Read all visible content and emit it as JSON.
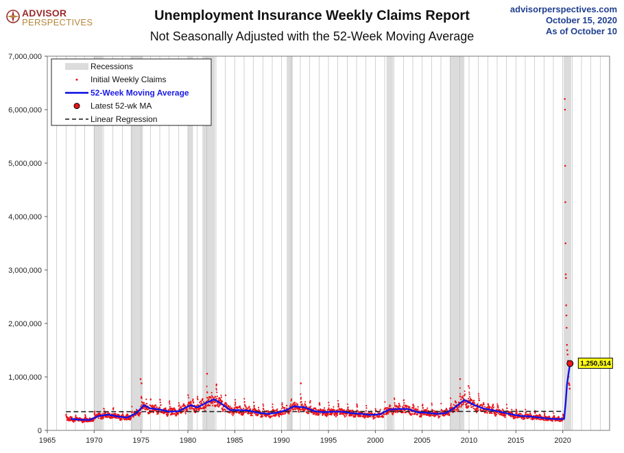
{
  "header": {
    "logo_line1": "ADVISOR",
    "logo_line2": "PERSPECTIVES",
    "title": "Unemployment Insurance Weekly Claims Report",
    "subtitle": "Not Seasonally Adjusted with the 52-Week Moving Average",
    "source_site": "advisorperspectives.com",
    "source_date": "October 15, 2020",
    "source_asof": "As  of October 10"
  },
  "colors": {
    "claims": "#e8141b",
    "ma": "#1212e6",
    "recession": "#dcdcdc",
    "regression": "#222222",
    "callout_bg": "#ffff1a",
    "grid": "#bdbdbd",
    "logo_red": "#9b2a2a",
    "logo_gold": "#b5853a",
    "source_blue": "#1f3f8f"
  },
  "chart_data": {
    "type": "scatter",
    "x_axis": {
      "min": 1965,
      "max": 2025,
      "ticks": [
        1965,
        1970,
        1975,
        1980,
        1985,
        1990,
        1995,
        2000,
        2005,
        2010,
        2015,
        2020
      ]
    },
    "y_axis": {
      "min": 0,
      "max": 7000000,
      "ticks": [
        0,
        1000000,
        2000000,
        3000000,
        4000000,
        5000000,
        6000000,
        7000000
      ],
      "tick_labels": [
        "0",
        "1,000,000",
        "2,000,000",
        "3,000,000",
        "4,000,000",
        "5,000,000",
        "6,000,000",
        "7,000,000"
      ]
    },
    "grid": "vertical-yearly",
    "legend_position": "top-left",
    "legend": [
      {
        "label": "Recessions",
        "marker": "band"
      },
      {
        "label": "Initial Weekly Claims",
        "marker": "dot"
      },
      {
        "label": "52-Week Moving Average",
        "marker": "line"
      },
      {
        "label": "Latest 52-wk MA",
        "marker": "big-dot"
      },
      {
        "label": "Linear Regression",
        "marker": "dash"
      }
    ],
    "recessions": [
      [
        1969.95,
        1970.9
      ],
      [
        1973.9,
        1975.2
      ],
      [
        1980.0,
        1980.55
      ],
      [
        1981.55,
        1982.9
      ],
      [
        1990.55,
        1991.2
      ],
      [
        2001.2,
        2001.9
      ],
      [
        2007.95,
        2009.5
      ],
      [
        2020.1,
        2020.9
      ]
    ],
    "moving_average": [
      [
        1967.5,
        215000
      ],
      [
        1968.5,
        200000
      ],
      [
        1969.5,
        195000
      ],
      [
        1970.5,
        270000
      ],
      [
        1971.5,
        295000
      ],
      [
        1972.5,
        260000
      ],
      [
        1973.5,
        240000
      ],
      [
        1974.5,
        320000
      ],
      [
        1975.3,
        470000
      ],
      [
        1976.0,
        410000
      ],
      [
        1977.0,
        390000
      ],
      [
        1978.0,
        350000
      ],
      [
        1979.0,
        360000
      ],
      [
        1980.3,
        470000
      ],
      [
        1981.0,
        430000
      ],
      [
        1982.0,
        520000
      ],
      [
        1982.8,
        580000
      ],
      [
        1983.5,
        510000
      ],
      [
        1984.5,
        380000
      ],
      [
        1985.5,
        380000
      ],
      [
        1986.5,
        370000
      ],
      [
        1987.5,
        330000
      ],
      [
        1988.5,
        310000
      ],
      [
        1989.5,
        330000
      ],
      [
        1990.5,
        380000
      ],
      [
        1991.3,
        450000
      ],
      [
        1992.5,
        430000
      ],
      [
        1993.5,
        360000
      ],
      [
        1994.5,
        340000
      ],
      [
        1995.5,
        350000
      ],
      [
        1996.5,
        350000
      ],
      [
        1997.5,
        320000
      ],
      [
        1998.5,
        310000
      ],
      [
        1999.5,
        290000
      ],
      [
        2000.5,
        300000
      ],
      [
        2001.5,
        390000
      ],
      [
        2002.5,
        400000
      ],
      [
        2003.5,
        400000
      ],
      [
        2004.5,
        340000
      ],
      [
        2005.5,
        330000
      ],
      [
        2006.5,
        310000
      ],
      [
        2007.5,
        320000
      ],
      [
        2008.5,
        430000
      ],
      [
        2009.5,
        570000
      ],
      [
        2010.5,
        480000
      ],
      [
        2011.5,
        410000
      ],
      [
        2012.5,
        380000
      ],
      [
        2013.5,
        340000
      ],
      [
        2014.5,
        300000
      ],
      [
        2015.5,
        270000
      ],
      [
        2016.5,
        260000
      ],
      [
        2017.5,
        240000
      ],
      [
        2018.5,
        220000
      ],
      [
        2019.5,
        210000
      ],
      [
        2020.15,
        215000
      ],
      [
        2020.3,
        500000
      ],
      [
        2020.45,
        850000
      ],
      [
        2020.6,
        1050000
      ],
      [
        2020.78,
        1250514
      ]
    ],
    "claims_notable": [
      [
        2020.22,
        6200000
      ],
      [
        2020.24,
        6000000
      ],
      [
        2020.26,
        4950000
      ],
      [
        2020.28,
        4270000
      ],
      [
        2020.3,
        3500000
      ],
      [
        2020.32,
        2920000
      ],
      [
        2020.34,
        2850000
      ],
      [
        2020.37,
        2340000
      ],
      [
        2020.39,
        2150000
      ],
      [
        2020.41,
        1920000
      ],
      [
        2020.45,
        1600000
      ],
      [
        2020.48,
        1500000
      ],
      [
        2020.52,
        1420000
      ],
      [
        2020.56,
        1300000
      ],
      [
        2020.6,
        1000000
      ],
      [
        2020.66,
        880000
      ],
      [
        2020.7,
        850000
      ],
      [
        2020.74,
        780000
      ],
      [
        1982.05,
        1060000
      ],
      [
        1974.95,
        960000
      ],
      [
        2009.05,
        960000
      ],
      [
        1975.05,
        880000
      ],
      [
        1992.05,
        880000
      ],
      [
        2009.95,
        830000
      ],
      [
        1983.05,
        860000
      ]
    ],
    "claims_baseline_mean": 350000,
    "claims_spread": 0.35,
    "regression": {
      "start": [
        1967.0,
        350000
      ],
      "end": [
        2020.2,
        355000
      ]
    },
    "latest_ma": {
      "x": 2020.78,
      "y": 1250514,
      "label": "1,250,514"
    }
  }
}
